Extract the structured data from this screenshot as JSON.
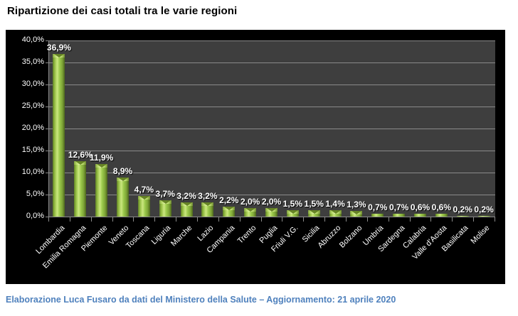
{
  "title": "Ripartizione dei casi totali tra le varie regioni",
  "footer": "Elaborazione Luca Fusaro da dati del Ministero della Salute – Aggiornamento: 21 aprile 2020",
  "colors": {
    "page_bg": "#FFFFFF",
    "chart_bg": "#000000",
    "plot_bg": "#3E3E3E",
    "gridline": "#8A8A8A",
    "bar_green_main": "#9AC84A",
    "bar_green_light": "#CBE77F",
    "bar_green_dark": "#4C661C",
    "axis_text": "#FFFFFF",
    "value_label_text": "#FFFFFF",
    "title_text": "#000000",
    "footer_text": "#4F81BD"
  },
  "y_axis": {
    "min": 0,
    "max": 40,
    "step": 5,
    "tick_labels": [
      "0,0%",
      "5,0%",
      "10,0%",
      "15,0%",
      "20,0%",
      "25,0%",
      "30,0%",
      "35,0%",
      "40,0%"
    ]
  },
  "chart_data": {
    "type": "bar",
    "title": "Ripartizione dei casi totali tra le varie regioni",
    "categories": [
      "Lombardia",
      "Emilia Romagna",
      "Piemonte",
      "Veneto",
      "Toscana",
      "Liguria",
      "Marche",
      "Lazio",
      "Campania",
      "Trento",
      "Puglia",
      "Friuli V.G.",
      "Sicilia",
      "Abruzzo",
      "Bolzano",
      "Umbria",
      "Sardegna",
      "Calabria",
      "Valle d'Aosta",
      "Basilicata",
      "Molise"
    ],
    "values": [
      36.9,
      12.6,
      11.9,
      8.9,
      4.7,
      3.7,
      3.2,
      3.2,
      2.2,
      2.0,
      2.0,
      1.5,
      1.5,
      1.4,
      1.3,
      0.7,
      0.7,
      0.6,
      0.6,
      0.2,
      0.2
    ],
    "value_labels": [
      "36,9%",
      "12,6%",
      "11,9%",
      "8,9%",
      "4,7%",
      "3,7%",
      "3,2%",
      "3,2%",
      "2,2%",
      "2,0%",
      "2,0%",
      "1,5%",
      "1,5%",
      "1,4%",
      "1,3%",
      "0,7%",
      "0,7%",
      "0,6%",
      "0,6%",
      "0,2%",
      "0,2%"
    ],
    "xlabel": "",
    "ylabel": "",
    "ylim": [
      0,
      40
    ],
    "grid": true,
    "legend": false,
    "bar_color": "green-3d-gradient",
    "plot_style": "dark-gray-on-black"
  }
}
